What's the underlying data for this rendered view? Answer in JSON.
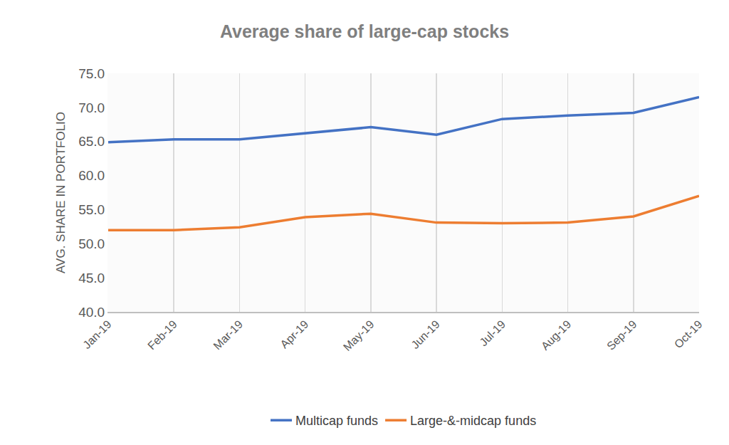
{
  "chart_data": {
    "type": "line",
    "title": "Average share of large-cap stocks",
    "y_label": "AVG. SHARE IN PORTFOLIO",
    "categories": [
      "Jan-19",
      "Feb-19",
      "Mar-19",
      "Apr-19",
      "May-19",
      "Jun-19",
      "Jul-19",
      "Aug-19",
      "Sep-19",
      "Oct-19"
    ],
    "series": [
      {
        "name": "Multicap funds",
        "color": "#4472c4",
        "values": [
          64.9,
          65.3,
          65.3,
          66.2,
          67.1,
          66.0,
          68.3,
          68.8,
          69.2,
          71.5
        ]
      },
      {
        "name": "Large-&-midcap funds",
        "color": "#ed7d31",
        "values": [
          52.0,
          52.0,
          52.4,
          53.9,
          54.4,
          53.1,
          53.0,
          53.1,
          54.0,
          57.0
        ]
      }
    ],
    "ylim": [
      40,
      75
    ],
    "yticks": [
      {
        "value": 40,
        "label": "40.0"
      },
      {
        "value": 45,
        "label": "45.0"
      },
      {
        "value": 50,
        "label": "50.0"
      },
      {
        "value": 55,
        "label": "55.0"
      },
      {
        "value": 60,
        "label": "60.0"
      },
      {
        "value": 65,
        "label": "65.0"
      },
      {
        "value": 70,
        "label": "70.0"
      },
      {
        "value": 75,
        "label": "75.0"
      }
    ],
    "grid": true,
    "legend": "bottom"
  }
}
